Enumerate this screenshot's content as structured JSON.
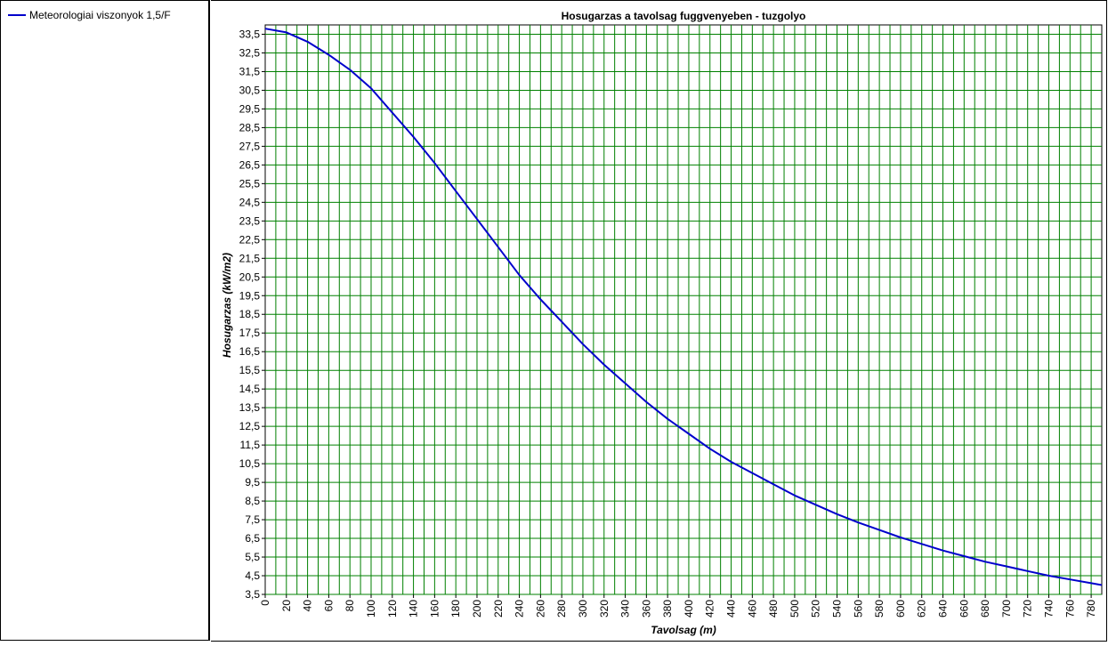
{
  "legend": {
    "items": [
      {
        "label": "Meteorologiai viszonyok 1,5/F",
        "color": "#0000cc"
      }
    ]
  },
  "chart_data": {
    "type": "line",
    "title": "Hosugarzas a tavolsag fuggvenyeben - tuzgolyo",
    "xlabel": "Tavolsag (m)",
    "ylabel": "Hosugarzas (kW/m2)",
    "xlim": [
      0,
      790
    ],
    "ylim": [
      3.5,
      34
    ],
    "xticks": [
      0,
      20,
      40,
      60,
      80,
      100,
      120,
      140,
      160,
      180,
      200,
      220,
      240,
      260,
      280,
      300,
      320,
      340,
      360,
      380,
      400,
      420,
      440,
      460,
      480,
      500,
      520,
      540,
      560,
      580,
      600,
      620,
      640,
      660,
      680,
      700,
      720,
      740,
      760,
      780
    ],
    "yticks": [
      3.5,
      4.5,
      5.5,
      6.5,
      7.5,
      8.5,
      9.5,
      10.5,
      11.5,
      12.5,
      13.5,
      14.5,
      15.5,
      16.5,
      17.5,
      18.5,
      19.5,
      20.5,
      21.5,
      22.5,
      23.5,
      24.5,
      25.5,
      26.5,
      27.5,
      28.5,
      29.5,
      30.5,
      31.5,
      32.5,
      33.5
    ],
    "ytick_labels": [
      "3,5",
      "4,5",
      "5,5",
      "6,5",
      "7,5",
      "8,5",
      "9,5",
      "10,5",
      "11,5",
      "12,5",
      "13,5",
      "14,5",
      "15,5",
      "16,5",
      "17,5",
      "18,5",
      "19,5",
      "20,5",
      "21,5",
      "22,5",
      "23,5",
      "24,5",
      "25,5",
      "26,5",
      "27,5",
      "28,5",
      "29,5",
      "30,5",
      "31,5",
      "32,5",
      "33,5"
    ],
    "grid": true,
    "grid_color": "#008000",
    "series": [
      {
        "name": "Meteorologiai viszonyok 1,5/F",
        "color": "#0000cc",
        "x": [
          0,
          20,
          40,
          60,
          80,
          100,
          120,
          140,
          160,
          180,
          200,
          220,
          240,
          260,
          280,
          300,
          320,
          340,
          360,
          380,
          400,
          420,
          440,
          460,
          480,
          500,
          520,
          540,
          560,
          580,
          600,
          620,
          640,
          660,
          680,
          700,
          720,
          740,
          760,
          780,
          790
        ],
        "y": [
          33.8,
          33.6,
          33.1,
          32.4,
          31.6,
          30.6,
          29.3,
          28.0,
          26.6,
          25.1,
          23.6,
          22.1,
          20.6,
          19.3,
          18.1,
          16.9,
          15.8,
          14.8,
          13.8,
          12.9,
          12.1,
          11.3,
          10.6,
          10.0,
          9.4,
          8.8,
          8.3,
          7.8,
          7.35,
          6.95,
          6.55,
          6.2,
          5.85,
          5.55,
          5.25,
          5.0,
          4.75,
          4.5,
          4.3,
          4.1,
          4.0
        ]
      }
    ]
  }
}
